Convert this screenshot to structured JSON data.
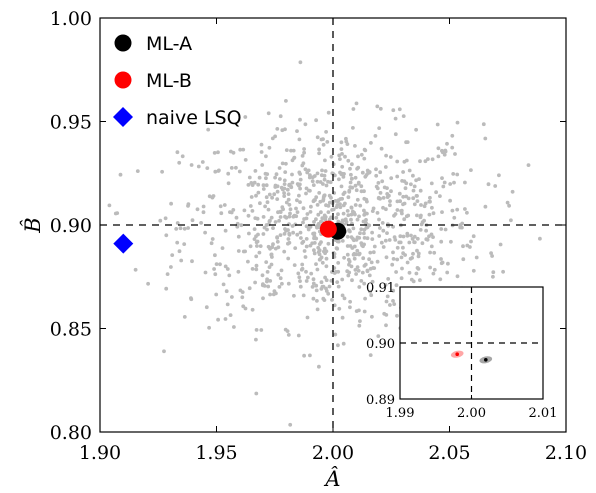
{
  "chart_data": {
    "type": "scatter",
    "xlabel": "Â",
    "ylabel": "B̂",
    "xlim": [
      1.9,
      2.1
    ],
    "ylim": [
      0.8,
      1.0
    ],
    "x_ticks": [
      1.9,
      1.95,
      2.0,
      2.05,
      2.1
    ],
    "x_tick_labels": [
      "1.90",
      "1.95",
      "2.00",
      "2.05",
      "2.10"
    ],
    "y_ticks": [
      0.8,
      0.85,
      0.9,
      0.95,
      1.0
    ],
    "y_tick_labels": [
      "0.80",
      "0.85",
      "0.90",
      "0.95",
      "1.00"
    ],
    "reference_lines": {
      "x": 2.0,
      "y": 0.9,
      "style": "dashed"
    },
    "legend_position": "top-left",
    "cloud": {
      "color": "#bbbbbb",
      "count": 1000,
      "center": [
        2.0,
        0.9
      ],
      "sd": [
        0.032,
        0.024
      ]
    },
    "series": [
      {
        "name": "ML-A",
        "marker": "circle",
        "color": "#000000",
        "x": 2.002,
        "y": 0.897
      },
      {
        "name": "ML-B",
        "marker": "circle",
        "color": "#ff0000",
        "x": 1.998,
        "y": 0.898
      },
      {
        "name": "naive LSQ",
        "marker": "diamond",
        "color": "#0000ff",
        "x": 1.91,
        "y": 0.891
      }
    ],
    "inset": {
      "xlim": [
        1.99,
        2.01
      ],
      "ylim": [
        0.89,
        0.91
      ],
      "x_ticks": [
        1.99,
        2.0,
        2.01
      ],
      "x_tick_labels": [
        "1.99",
        "2.00",
        "2.01"
      ],
      "y_ticks": [
        0.89,
        0.9,
        0.91
      ],
      "y_tick_labels": [
        "0.89",
        "0.90",
        "0.91"
      ],
      "ellipses": [
        {
          "color": "#ff0000",
          "x": 1.998,
          "y": 0.898,
          "rx": 0.0009,
          "ry": 0.0006
        },
        {
          "color": "#000000",
          "x": 2.002,
          "y": 0.897,
          "rx": 0.0009,
          "ry": 0.0006
        }
      ]
    }
  }
}
